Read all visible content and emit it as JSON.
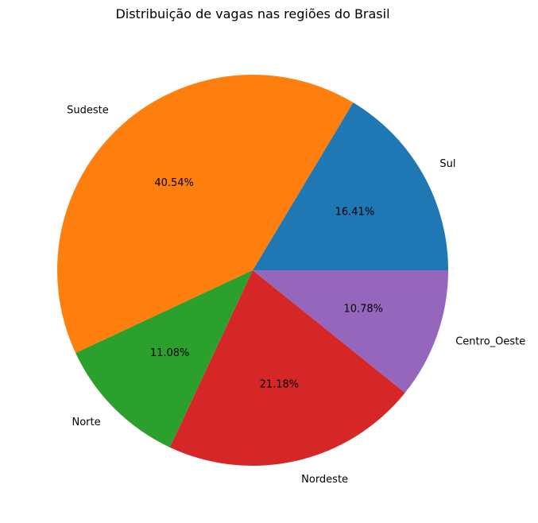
{
  "chart_data": {
    "type": "pie",
    "title": "Distribuição de vagas nas regiões do Brasil",
    "slices": [
      {
        "label": "Sul",
        "value": 16.41,
        "pct_label": "16.41%",
        "color": "#1f77b4"
      },
      {
        "label": "Sudeste",
        "value": 40.54,
        "pct_label": "40.54%",
        "color": "#ff7f0e"
      },
      {
        "label": "Norte",
        "value": 11.08,
        "pct_label": "11.08%",
        "color": "#2ca02c"
      },
      {
        "label": "Nordeste",
        "value": 21.18,
        "pct_label": "21.18%",
        "color": "#d62728"
      },
      {
        "label": "Centro_Oeste",
        "value": 10.78,
        "pct_label": "10.78%",
        "color": "#9467bd"
      }
    ],
    "start_angle": "0 degrees (east)",
    "direction": "counterclockwise"
  }
}
